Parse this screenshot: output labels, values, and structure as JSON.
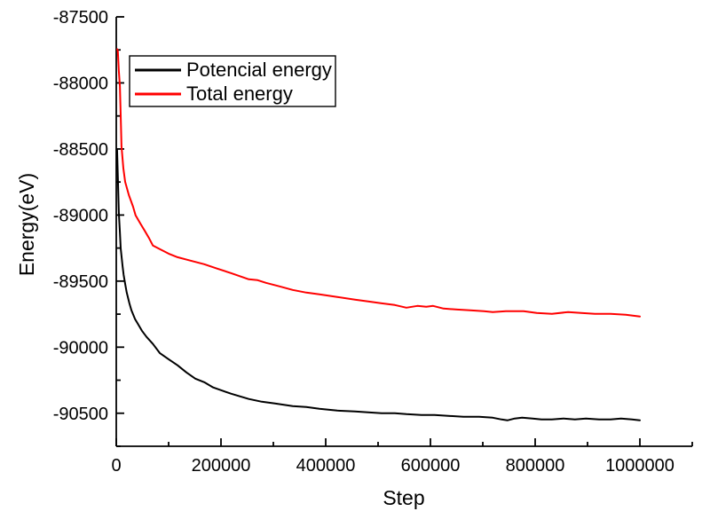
{
  "chart_data": {
    "type": "line",
    "title": "",
    "xlabel": "Step",
    "ylabel": "Energy(eV)",
    "xlim": [
      0,
      1100000
    ],
    "ylim": [
      -90750,
      -87500
    ],
    "xticks": [
      0,
      200000,
      400000,
      600000,
      800000,
      1000000
    ],
    "yticks": [
      -87500,
      -88000,
      -88500,
      -89000,
      -89500,
      -90000,
      -90500
    ],
    "x_minor_step": 100000,
    "y_minor_step": 250,
    "grid": false,
    "legend_position": "top-left-inside",
    "background": "#ffffff",
    "axis_color": "#000000",
    "series": [
      {
        "name": "Potencial energy",
        "color": "#000000",
        "points": [
          [
            1500,
            -88500
          ],
          [
            3000,
            -88715
          ],
          [
            5000,
            -88983
          ],
          [
            7000,
            -89130
          ],
          [
            8500,
            -89252
          ],
          [
            12000,
            -89386
          ],
          [
            14000,
            -89453
          ],
          [
            17000,
            -89520
          ],
          [
            20000,
            -89587
          ],
          [
            25000,
            -89668
          ],
          [
            29000,
            -89721
          ],
          [
            36000,
            -89788
          ],
          [
            41000,
            -89822
          ],
          [
            49000,
            -89876
          ],
          [
            58000,
            -89923
          ],
          [
            70000,
            -89976
          ],
          [
            83000,
            -90044
          ],
          [
            100000,
            -90091
          ],
          [
            117000,
            -90137
          ],
          [
            134000,
            -90191
          ],
          [
            151000,
            -90238
          ],
          [
            168000,
            -90265
          ],
          [
            185000,
            -90305
          ],
          [
            205000,
            -90332
          ],
          [
            219000,
            -90352
          ],
          [
            236000,
            -90372
          ],
          [
            253000,
            -90392
          ],
          [
            278000,
            -90413
          ],
          [
            303000,
            -90426
          ],
          [
            337000,
            -90446
          ],
          [
            363000,
            -90453
          ],
          [
            388000,
            -90466
          ],
          [
            422000,
            -90480
          ],
          [
            456000,
            -90486
          ],
          [
            481000,
            -90493
          ],
          [
            507000,
            -90500
          ],
          [
            532000,
            -90500
          ],
          [
            554000,
            -90507
          ],
          [
            583000,
            -90513
          ],
          [
            608000,
            -90513
          ],
          [
            634000,
            -90520
          ],
          [
            663000,
            -90527
          ],
          [
            693000,
            -90527
          ],
          [
            719000,
            -90534
          ],
          [
            736000,
            -90547
          ],
          [
            747000,
            -90554
          ],
          [
            761000,
            -90540
          ],
          [
            775000,
            -90533
          ],
          [
            795000,
            -90540
          ],
          [
            812000,
            -90547
          ],
          [
            832000,
            -90547
          ],
          [
            854000,
            -90540
          ],
          [
            876000,
            -90547
          ],
          [
            897000,
            -90540
          ],
          [
            922000,
            -90547
          ],
          [
            944000,
            -90547
          ],
          [
            964000,
            -90540
          ],
          [
            985000,
            -90547
          ],
          [
            1000000,
            -90553
          ]
        ]
      },
      {
        "name": "Total energy",
        "color": "#ff0000",
        "points": [
          [
            2000,
            -87745
          ],
          [
            3000,
            -87762
          ],
          [
            5000,
            -87910
          ],
          [
            7000,
            -88023
          ],
          [
            8500,
            -88245
          ],
          [
            10000,
            -88480
          ],
          [
            13500,
            -88647
          ],
          [
            17000,
            -88748
          ],
          [
            24000,
            -88849
          ],
          [
            32000,
            -88936
          ],
          [
            37000,
            -89003
          ],
          [
            46000,
            -89064
          ],
          [
            54000,
            -89117
          ],
          [
            63000,
            -89178
          ],
          [
            70000,
            -89231
          ],
          [
            83000,
            -89258
          ],
          [
            100000,
            -89292
          ],
          [
            117000,
            -89319
          ],
          [
            142000,
            -89345
          ],
          [
            168000,
            -89372
          ],
          [
            193000,
            -89406
          ],
          [
            219000,
            -89439
          ],
          [
            253000,
            -89486
          ],
          [
            270000,
            -89493
          ],
          [
            286000,
            -89513
          ],
          [
            312000,
            -89540
          ],
          [
            337000,
            -89567
          ],
          [
            363000,
            -89587
          ],
          [
            388000,
            -89600
          ],
          [
            422000,
            -89620
          ],
          [
            456000,
            -89641
          ],
          [
            481000,
            -89654
          ],
          [
            507000,
            -89668
          ],
          [
            532000,
            -89681
          ],
          [
            554000,
            -89701
          ],
          [
            575000,
            -89688
          ],
          [
            592000,
            -89694
          ],
          [
            605000,
            -89688
          ],
          [
            625000,
            -89708
          ],
          [
            651000,
            -89715
          ],
          [
            676000,
            -89721
          ],
          [
            702000,
            -89728
          ],
          [
            719000,
            -89734
          ],
          [
            744000,
            -89728
          ],
          [
            778000,
            -89728
          ],
          [
            803000,
            -89741
          ],
          [
            832000,
            -89748
          ],
          [
            863000,
            -89734
          ],
          [
            888000,
            -89741
          ],
          [
            914000,
            -89748
          ],
          [
            944000,
            -89748
          ],
          [
            973000,
            -89755
          ],
          [
            1000000,
            -89768
          ]
        ]
      }
    ]
  }
}
